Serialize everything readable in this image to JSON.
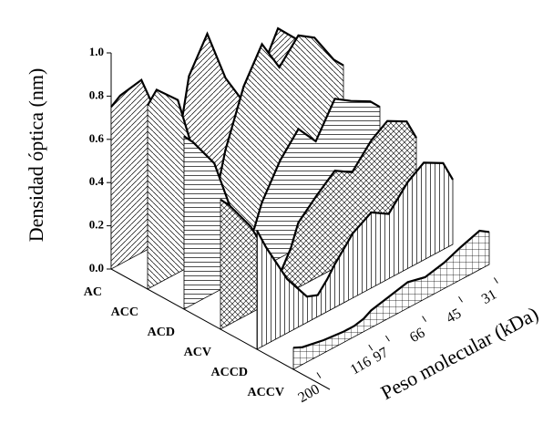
{
  "chart_data": {
    "type": "waterfall3d",
    "ylabel": "Densidad óptica (nm)",
    "xlabel": "Peso molecular (kDa)",
    "ylim": [
      0,
      1
    ],
    "yticks": [
      {
        "value": 0,
        "label": "0.0"
      },
      0.2,
      0.4,
      0.6,
      0.8,
      {
        "value": 1,
        "label": "1.0"
      }
    ],
    "xlog": true,
    "xlim": [
      220,
      28
    ],
    "xticks": [
      200,
      116,
      97,
      66,
      45,
      31
    ],
    "x": [
      220,
      200,
      160,
      130,
      116,
      105,
      97,
      80,
      66,
      55,
      45,
      38,
      31,
      28
    ],
    "color": "#000000",
    "series": [
      {
        "name": "AC",
        "values": [
          0.75,
          0.78,
          0.8,
          0.55,
          0.3,
          0.5,
          0.7,
          0.85,
          0.6,
          0.45,
          0.55,
          0.7,
          0.6,
          0.5
        ]
      },
      {
        "name": "ACC",
        "values": [
          0.85,
          0.9,
          0.8,
          0.45,
          0.25,
          0.3,
          0.45,
          0.7,
          0.85,
          0.7,
          0.8,
          0.75,
          0.6,
          0.55
        ]
      },
      {
        "name": "ACD",
        "values": [
          0.8,
          0.75,
          0.6,
          0.3,
          0.15,
          0.2,
          0.3,
          0.45,
          0.55,
          0.45,
          0.6,
          0.55,
          0.5,
          0.45
        ]
      },
      {
        "name": "ACV",
        "values": [
          0.6,
          0.55,
          0.4,
          0.2,
          0.12,
          0.2,
          0.3,
          0.38,
          0.45,
          0.4,
          0.5,
          0.55,
          0.5,
          0.4
        ]
      },
      {
        "name": "ACCD",
        "values": [
          0.55,
          0.45,
          0.25,
          0.12,
          0.1,
          0.15,
          0.2,
          0.3,
          0.35,
          0.3,
          0.4,
          0.45,
          0.4,
          0.3
        ]
      },
      {
        "name": "ACCV",
        "values": [
          0.1,
          0.08,
          0.06,
          0.05,
          0.05,
          0.06,
          0.08,
          0.1,
          0.12,
          0.1,
          0.12,
          0.15,
          0.18,
          0.15
        ]
      }
    ]
  }
}
